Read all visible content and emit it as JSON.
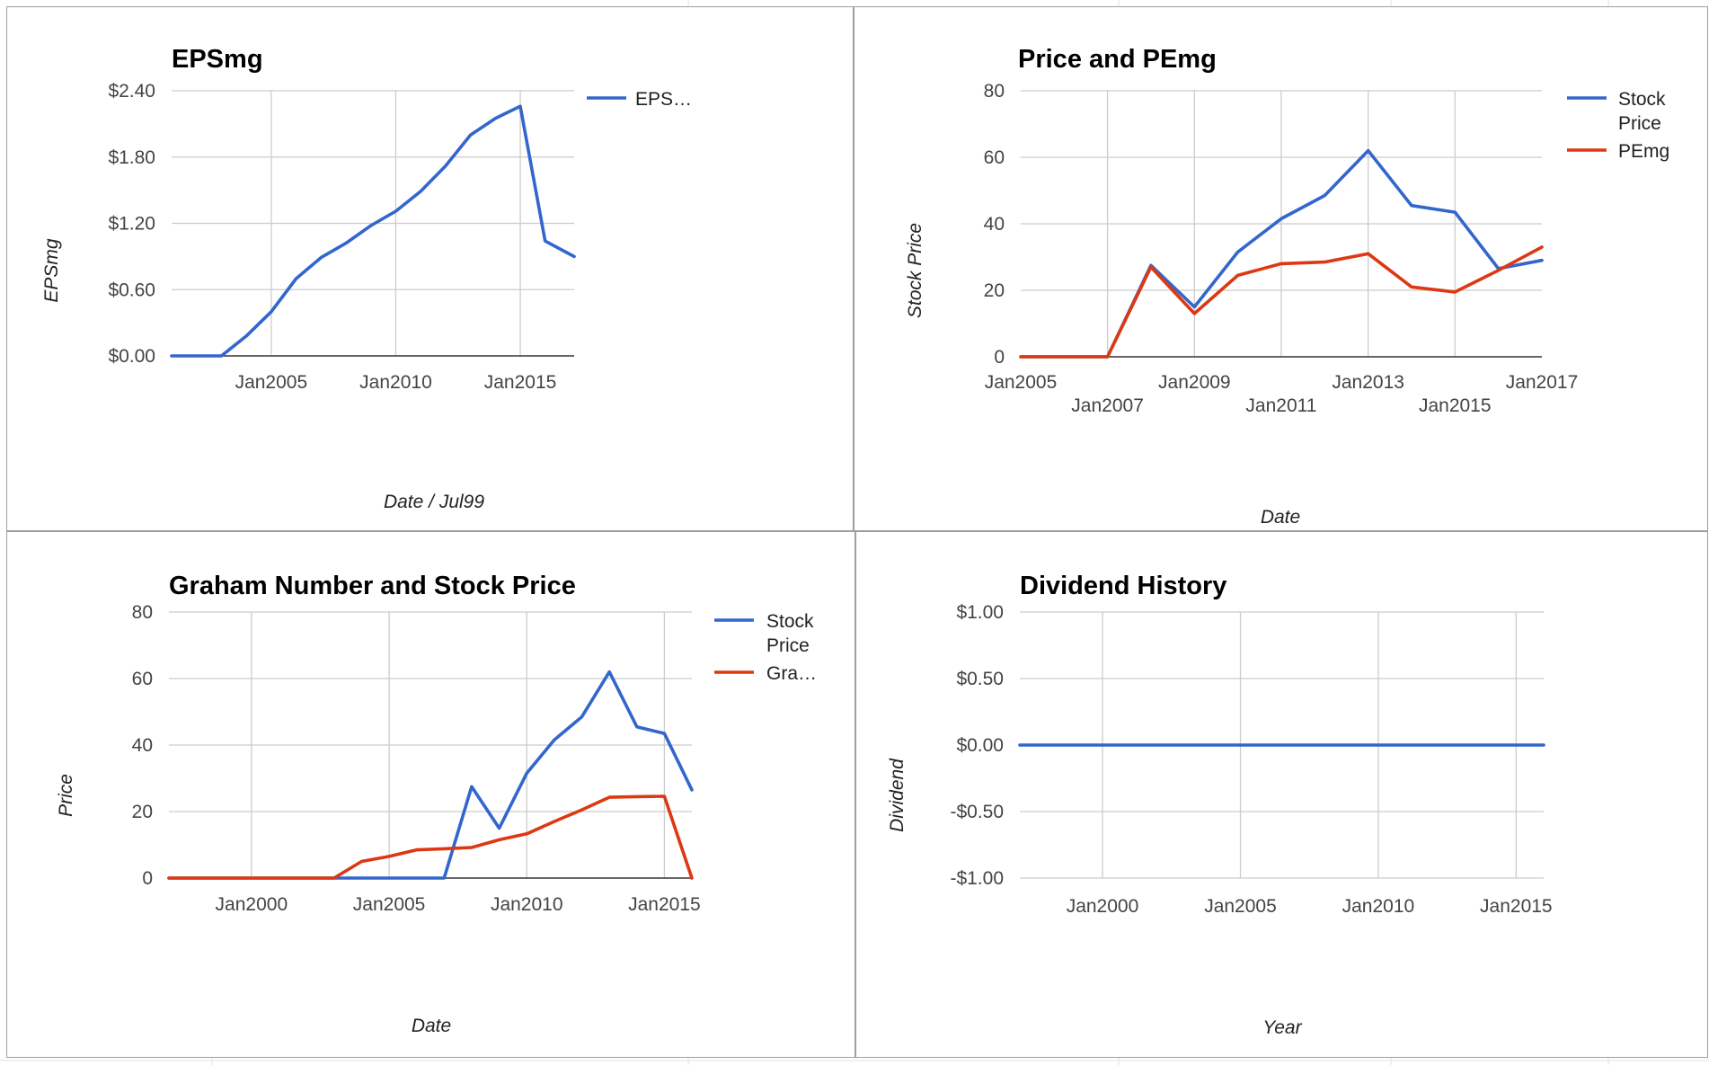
{
  "colors": {
    "blue": "#3366cc",
    "red": "#dc3912",
    "grid": "#cccccc",
    "panel_border": "#9e9e9e",
    "sheet_grid": "#e2e2e2"
  },
  "chart_data": [
    {
      "type": "line",
      "title": "EPSmg",
      "xlabel": "Date / Jul99",
      "ylabel": "EPSmg",
      "x_type": "date",
      "xlim": [
        "2001-01-01",
        "2017-03-01"
      ],
      "ylim": [
        0,
        2.4
      ],
      "yticks": [
        0,
        0.6,
        1.2,
        1.8,
        2.4
      ],
      "ytick_labels": [
        "$0.00",
        "$0.60",
        "$1.20",
        "$1.80",
        "$2.40"
      ],
      "xticks": [
        "2005-01-01",
        "2010-01-01",
        "2015-01-01"
      ],
      "xtick_labels": [
        "Jan2005",
        "Jan2010",
        "Jan2015"
      ],
      "grid": true,
      "legend": "right",
      "series": [
        {
          "name": "EPS…",
          "color": "#3366cc",
          "x": [
            "2001-01-01",
            "2002-01-01",
            "2003-01-01",
            "2004-01-01",
            "2005-01-01",
            "2006-01-01",
            "2007-01-01",
            "2008-01-01",
            "2009-01-01",
            "2010-01-01",
            "2011-01-01",
            "2012-01-01",
            "2013-01-01",
            "2014-01-01",
            "2015-01-01",
            "2016-01-01",
            "2017-03-01"
          ],
          "y": [
            0,
            0,
            0,
            0.18,
            0.4,
            0.7,
            0.89,
            1.02,
            1.18,
            1.31,
            1.49,
            1.72,
            2.0,
            2.15,
            2.26,
            1.04,
            0.9
          ]
        }
      ]
    },
    {
      "type": "line",
      "title": "Price and PEmg",
      "xlabel": "Date",
      "ylabel": "Stock Price",
      "x_type": "date",
      "xlim": [
        "2005-01-01",
        "2017-01-01"
      ],
      "ylim": [
        0,
        80
      ],
      "yticks": [
        0,
        20,
        40,
        60,
        80
      ],
      "ytick_labels": [
        "0",
        "20",
        "40",
        "60",
        "80"
      ],
      "xticks": [
        "2005-01-01",
        "2007-01-01",
        "2009-01-01",
        "2011-01-01",
        "2013-01-01",
        "2015-01-01",
        "2017-01-01"
      ],
      "xtick_labels": [
        "Jan2005",
        "Jan2007",
        "Jan2009",
        "Jan2011",
        "Jan2013",
        "Jan2015",
        "Jan2017"
      ],
      "grid": true,
      "legend": "right",
      "series": [
        {
          "name": "Stock Price",
          "color": "#3366cc",
          "x": [
            "2005-01-01",
            "2006-01-01",
            "2007-01-01",
            "2008-01-01",
            "2009-01-01",
            "2010-01-01",
            "2011-01-01",
            "2012-01-01",
            "2013-01-01",
            "2014-01-01",
            "2015-01-01",
            "2016-01-01",
            "2017-01-01"
          ],
          "y": [
            0,
            0,
            0,
            27.5,
            15,
            31.5,
            41.5,
            48.5,
            62,
            45.5,
            43.5,
            26.5,
            29
          ]
        },
        {
          "name": "PEmg",
          "color": "#dc3912",
          "x": [
            "2005-01-01",
            "2006-01-01",
            "2007-01-01",
            "2008-01-01",
            "2009-01-01",
            "2010-01-01",
            "2011-01-01",
            "2012-01-01",
            "2013-01-01",
            "2014-01-01",
            "2015-01-01",
            "2016-01-01",
            "2017-01-01"
          ],
          "y": [
            0,
            0,
            0,
            27,
            13,
            24.5,
            28,
            28.5,
            31,
            21,
            19.5,
            26,
            33
          ]
        }
      ]
    },
    {
      "type": "line",
      "title": "Graham Number and Stock Price",
      "xlabel": "Date",
      "ylabel": "Price",
      "x_type": "date",
      "xlim": [
        "1997-01-01",
        "2016-01-01"
      ],
      "ylim": [
        0,
        80
      ],
      "yticks": [
        0,
        20,
        40,
        60,
        80
      ],
      "ytick_labels": [
        "0",
        "20",
        "40",
        "60",
        "80"
      ],
      "xticks": [
        "2000-01-01",
        "2005-01-01",
        "2010-01-01",
        "2015-01-01"
      ],
      "xtick_labels": [
        "Jan2000",
        "Jan2005",
        "Jan2010",
        "Jan2015"
      ],
      "grid": true,
      "legend": "right",
      "series": [
        {
          "name": "Stock Price",
          "color": "#3366cc",
          "x": [
            "1997-01-01",
            "2007-01-01",
            "2008-01-01",
            "2009-01-01",
            "2010-01-01",
            "2011-01-01",
            "2012-01-01",
            "2013-01-01",
            "2014-01-01",
            "2015-01-01",
            "2016-01-01"
          ],
          "y": [
            0,
            0,
            27.5,
            15,
            31.5,
            41.5,
            48.5,
            62,
            45.5,
            43.5,
            26.5
          ]
        },
        {
          "name": "Gra…",
          "color": "#dc3912",
          "x": [
            "1997-01-01",
            "2003-01-01",
            "2004-01-01",
            "2005-01-01",
            "2006-01-01",
            "2007-01-01",
            "2008-01-01",
            "2009-01-01",
            "2010-01-01",
            "2011-01-01",
            "2012-01-01",
            "2013-01-01",
            "2014-01-01",
            "2015-01-01",
            "2016-01-01"
          ],
          "y": [
            0,
            0,
            5,
            6.5,
            8.5,
            8.8,
            9.2,
            11.5,
            13.3,
            17,
            20.5,
            24.3,
            24.5,
            24.6,
            0
          ]
        }
      ]
    },
    {
      "type": "line",
      "title": "Dividend History",
      "xlabel": "Year",
      "ylabel": "Dividend",
      "x_type": "date",
      "xlim": [
        "1997-01-01",
        "2016-01-01"
      ],
      "ylim": [
        -1,
        1
      ],
      "yticks": [
        -1,
        -0.5,
        0,
        0.5,
        1
      ],
      "ytick_labels": [
        "-$1.00",
        "-$0.50",
        "$0.00",
        "$0.50",
        "$1.00"
      ],
      "xticks": [
        "2000-01-01",
        "2005-01-01",
        "2010-01-01",
        "2015-01-01"
      ],
      "xtick_labels": [
        "Jan2000",
        "Jan2005",
        "Jan2010",
        "Jan2015"
      ],
      "grid": true,
      "legend": "none",
      "series": [
        {
          "color": "#3366cc",
          "x": [
            "1997-01-01",
            "2016-01-01"
          ],
          "y": [
            0,
            0
          ]
        }
      ]
    }
  ]
}
